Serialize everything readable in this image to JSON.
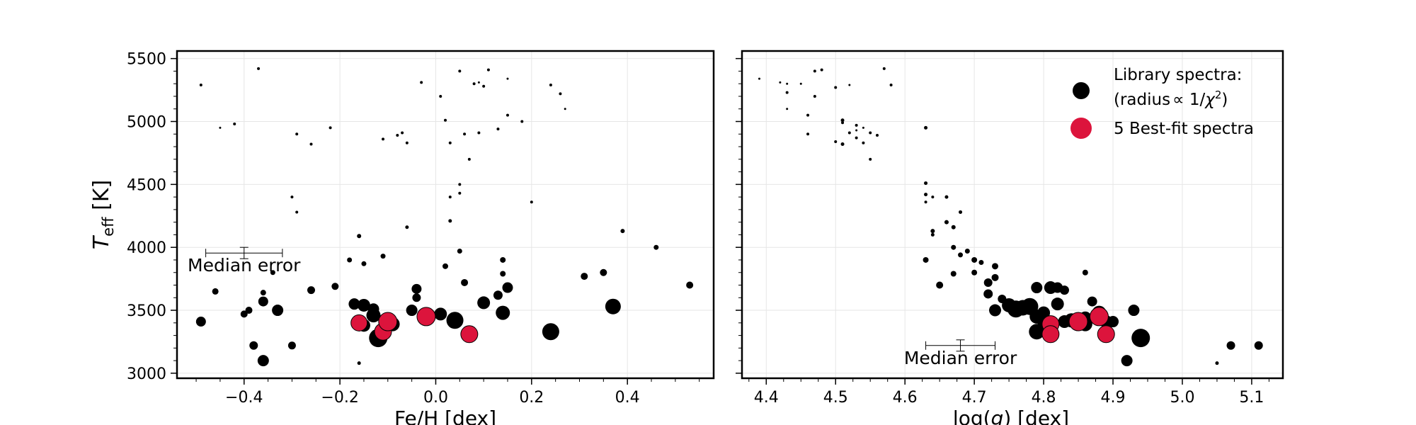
{
  "chart_data": [
    {
      "type": "scatter",
      "panel": "left",
      "xlabel": "Fe/H [dex]",
      "ylabel_main": "T",
      "ylabel_sub": "eff",
      "ylabel_unit": " [K]",
      "xlim": [
        -0.54,
        0.58
      ],
      "ylim": [
        2960,
        5560
      ],
      "xticks": [
        -0.4,
        -0.2,
        0.0,
        0.2,
        0.4
      ],
      "xtick_labels": [
        "−0.4",
        "−0.2",
        "0.0",
        "0.2",
        "0.4"
      ],
      "yticks": [
        3000,
        3500,
        4000,
        4500,
        5000,
        5500
      ],
      "ytick_labels": [
        "3000",
        "3500",
        "4000",
        "4500",
        "5000",
        "5500"
      ],
      "grid": true,
      "series": [
        {
          "name": "Library spectra:",
          "points": [
            [
              -0.49,
              5290,
              2
            ],
            [
              -0.37,
              5420,
              2
            ],
            [
              -0.45,
              4950,
              1.5
            ],
            [
              -0.42,
              4980,
              2
            ],
            [
              -0.29,
              4900,
              2
            ],
            [
              -0.26,
              4820,
              2
            ],
            [
              -0.22,
              4950,
              2
            ],
            [
              -0.08,
              4890,
              2
            ],
            [
              -0.07,
              4910,
              2
            ],
            [
              -0.11,
              4860,
              2
            ],
            [
              -0.06,
              4830,
              2
            ],
            [
              -0.03,
              5310,
              2
            ],
            [
              0.01,
              5200,
              2
            ],
            [
              0.05,
              5400,
              2
            ],
            [
              0.08,
              5300,
              2
            ],
            [
              0.09,
              5310,
              1.5
            ],
            [
              0.1,
              5280,
              2
            ],
            [
              0.11,
              5410,
              2
            ],
            [
              0.15,
              5340,
              1.5
            ],
            [
              0.02,
              5010,
              2
            ],
            [
              0.03,
              4830,
              2
            ],
            [
              0.06,
              4900,
              2
            ],
            [
              0.09,
              4910,
              2
            ],
            [
              0.13,
              4940,
              2
            ],
            [
              0.15,
              5050,
              2
            ],
            [
              0.18,
              5000,
              2
            ],
            [
              0.24,
              5290,
              2
            ],
            [
              0.26,
              5220,
              2
            ],
            [
              0.27,
              5100,
              1.5
            ],
            [
              0.07,
              4700,
              2
            ],
            [
              0.05,
              4500,
              2
            ],
            [
              0.05,
              4430,
              2
            ],
            [
              0.03,
              4400,
              2
            ],
            [
              0.2,
              4360,
              2
            ],
            [
              -0.3,
              4400,
              2
            ],
            [
              -0.29,
              4280,
              2
            ],
            [
              -0.06,
              4160,
              2.5
            ],
            [
              0.03,
              4210,
              2.5
            ],
            [
              0.39,
              4130,
              3
            ],
            [
              -0.16,
              4090,
              3
            ],
            [
              0.46,
              4000,
              3.5
            ],
            [
              0.05,
              3970,
              3.5
            ],
            [
              -0.11,
              3930,
              3.5
            ],
            [
              0.14,
              3900,
              4
            ],
            [
              -0.18,
              3900,
              3.5
            ],
            [
              -0.34,
              3800,
              3.5
            ],
            [
              -0.15,
              3870,
              3.5
            ],
            [
              0.02,
              3850,
              4
            ],
            [
              0.14,
              3790,
              4
            ],
            [
              0.31,
              3770,
              5
            ],
            [
              0.35,
              3800,
              5
            ],
            [
              0.06,
              3720,
              5
            ],
            [
              0.53,
              3700,
              5
            ],
            [
              -0.21,
              3690,
              5
            ],
            [
              -0.26,
              3660,
              5.5
            ],
            [
              -0.46,
              3650,
              4.5
            ],
            [
              -0.36,
              3640,
              4
            ],
            [
              -0.04,
              3670,
              7
            ],
            [
              0.15,
              3680,
              7.5
            ],
            [
              0.13,
              3620,
              6.5
            ],
            [
              -0.04,
              3600,
              6
            ],
            [
              -0.36,
              3570,
              7
            ],
            [
              -0.17,
              3550,
              8
            ],
            [
              -0.15,
              3540,
              9
            ],
            [
              -0.13,
              3510,
              8
            ],
            [
              0.1,
              3560,
              9
            ],
            [
              0.37,
              3530,
              11
            ],
            [
              -0.33,
              3500,
              8
            ],
            [
              -0.39,
              3500,
              5
            ],
            [
              -0.4,
              3470,
              5
            ],
            [
              -0.05,
              3500,
              8
            ],
            [
              0.01,
              3470,
              9
            ],
            [
              -0.13,
              3460,
              10
            ],
            [
              0.14,
              3480,
              10
            ],
            [
              -0.49,
              3410,
              7
            ],
            [
              -0.09,
              3390,
              10
            ],
            [
              0.04,
              3420,
              12
            ],
            [
              -0.15,
              3380,
              9
            ],
            [
              -0.12,
              3280,
              13
            ],
            [
              -0.38,
              3220,
              6
            ],
            [
              -0.3,
              3220,
              5.5
            ],
            [
              0.24,
              3330,
              12
            ],
            [
              -0.36,
              3100,
              8
            ],
            [
              -0.16,
              3080,
              2.5
            ]
          ]
        },
        {
          "name": "5 Best-fit spectra",
          "points": [
            [
              -0.16,
              3400,
              11.5
            ],
            [
              -0.11,
              3330,
              12
            ],
            [
              -0.1,
              3410,
              13
            ],
            [
              -0.02,
              3450,
              13
            ],
            [
              0.07,
              3310,
              12
            ]
          ]
        }
      ],
      "annotations": {
        "median_error_label": "Median error",
        "error_center": [
          -0.4,
          3955
        ],
        "error_x": 0.08,
        "error_y": 45
      }
    },
    {
      "type": "scatter",
      "panel": "right",
      "xlabel_prefix": "log(",
      "xlabel_italic": "g",
      "xlabel_suffix": ") [dex]",
      "xlim": [
        4.365,
        5.145
      ],
      "ylim": [
        2960,
        5560
      ],
      "xticks": [
        4.4,
        4.5,
        4.6,
        4.7,
        4.8,
        4.9,
        5.0,
        5.1
      ],
      "xtick_labels": [
        "4.4",
        "4.5",
        "4.6",
        "4.7",
        "4.8",
        "4.9",
        "5.0",
        "5.1"
      ],
      "yticks": [
        3000,
        3500,
        4000,
        4500,
        5000,
        5500
      ],
      "grid": true,
      "series": [
        {
          "name": "Library spectra:",
          "points": [
            [
              4.39,
              5340,
              1.5
            ],
            [
              4.42,
              5310,
              1.5
            ],
            [
              4.43,
              5300,
              1.5
            ],
            [
              4.43,
              5230,
              2
            ],
            [
              4.43,
              5100,
              1.5
            ],
            [
              4.45,
              5300,
              1.5
            ],
            [
              4.47,
              5400,
              2
            ],
            [
              4.48,
              5410,
              2
            ],
            [
              4.47,
              5200,
              2
            ],
            [
              4.5,
              5270,
              2
            ],
            [
              4.52,
              5290,
              1.5
            ],
            [
              4.57,
              5420,
              2
            ],
            [
              4.58,
              5290,
              2
            ],
            [
              4.46,
              5050,
              2
            ],
            [
              4.46,
              4900,
              2
            ],
            [
              4.5,
              4840,
              2
            ],
            [
              4.51,
              5010,
              2.5
            ],
            [
              4.51,
              4990,
              2
            ],
            [
              4.51,
              4820,
              2.5
            ],
            [
              4.52,
              4910,
              2
            ],
            [
              4.53,
              4970,
              2
            ],
            [
              4.53,
              4870,
              2
            ],
            [
              4.54,
              4950,
              1.5
            ],
            [
              4.54,
              4830,
              2
            ],
            [
              4.55,
              4910,
              2
            ],
            [
              4.56,
              4890,
              2
            ],
            [
              4.55,
              4700,
              2
            ],
            [
              4.53,
              4930,
              1.5
            ],
            [
              4.63,
              4950,
              2.5
            ],
            [
              4.63,
              4510,
              2.5
            ],
            [
              4.63,
              4420,
              2.5
            ],
            [
              4.64,
              4400,
              2
            ],
            [
              4.63,
              4360,
              2
            ],
            [
              4.66,
              4400,
              2.5
            ],
            [
              4.64,
              4130,
              3
            ],
            [
              4.64,
              4100,
              2.5
            ],
            [
              4.66,
              4200,
              3
            ],
            [
              4.67,
              4160,
              3
            ],
            [
              4.68,
              4280,
              2.5
            ],
            [
              4.63,
              3900,
              4
            ],
            [
              4.67,
              4000,
              3.5
            ],
            [
              4.68,
              3940,
              3.5
            ],
            [
              4.69,
              3970,
              3.5
            ],
            [
              4.7,
              3900,
              4
            ],
            [
              4.71,
              3880,
              3.5
            ],
            [
              4.73,
              3850,
              4.5
            ],
            [
              4.73,
              3760,
              5
            ],
            [
              4.7,
              3800,
              4
            ],
            [
              4.67,
              3790,
              4
            ],
            [
              4.65,
              3700,
              5
            ],
            [
              4.72,
              3720,
              6
            ],
            [
              4.72,
              3630,
              6.5
            ],
            [
              4.79,
              3680,
              8
            ],
            [
              4.81,
              3680,
              9
            ],
            [
              4.82,
              3680,
              7.5
            ],
            [
              4.83,
              3660,
              6.5
            ],
            [
              4.86,
              3800,
              4
            ],
            [
              4.87,
              3570,
              7
            ],
            [
              4.74,
              3590,
              6
            ],
            [
              4.73,
              3500,
              8.5
            ],
            [
              4.75,
              3540,
              10
            ],
            [
              4.76,
              3510,
              12
            ],
            [
              4.77,
              3520,
              11
            ],
            [
              4.78,
              3530,
              12
            ],
            [
              4.79,
              3450,
              10
            ],
            [
              4.8,
              3480,
              9
            ],
            [
              4.8,
              3410,
              9
            ],
            [
              4.82,
              3550,
              9
            ],
            [
              4.83,
              3410,
              9
            ],
            [
              4.84,
              3420,
              10
            ],
            [
              4.86,
              3390,
              10
            ],
            [
              4.88,
              3480,
              10
            ],
            [
              4.89,
              3410,
              9
            ],
            [
              4.9,
              3410,
              8
            ],
            [
              4.93,
              3500,
              8
            ],
            [
              4.86,
              3440,
              9
            ],
            [
              4.79,
              3330,
              11
            ],
            [
              4.94,
              3280,
              13
            ],
            [
              4.92,
              3100,
              8
            ],
            [
              5.07,
              3220,
              6
            ],
            [
              5.11,
              3220,
              6
            ],
            [
              5.05,
              3080,
              2.5
            ]
          ]
        },
        {
          "name": "5 Best-fit spectra",
          "points": [
            [
              4.81,
              3390,
              12
            ],
            [
              4.81,
              3310,
              12
            ],
            [
              4.85,
              3410,
              13
            ],
            [
              4.88,
              3450,
              13
            ],
            [
              4.89,
              3310,
              12
            ]
          ]
        }
      ],
      "legend": {
        "placement": "top-right",
        "entry1_line1": "Library spectra:",
        "entry1_line2_prefix": "(radius",
        "entry1_line2_mid": "∝ 1/",
        "entry1_line2_chi": "χ",
        "entry1_line2_sup": "2",
        "entry1_line2_suffix": ")",
        "entry2": "5 Best-fit spectra"
      },
      "annotations": {
        "median_error_label": "Median error",
        "error_center": [
          4.68,
          3220
        ],
        "error_x": 0.05,
        "error_y": 45
      }
    }
  ],
  "colors": {
    "library": "#000000",
    "best_fit": "#dc143c",
    "grid": "#e6e6e6"
  }
}
